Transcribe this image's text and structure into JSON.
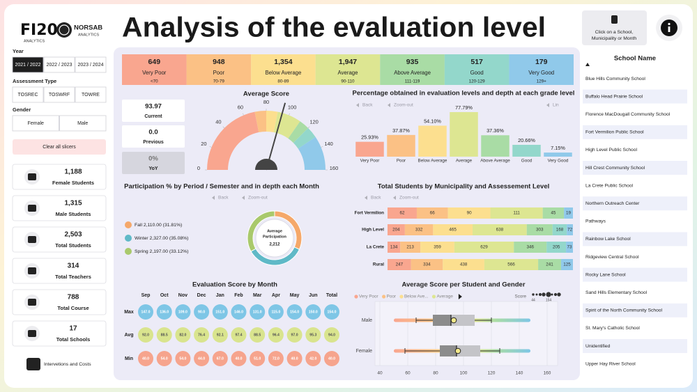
{
  "header": {
    "logo": "FI20",
    "logo_sub": "ANALYTICS",
    "partner": "NORSAB",
    "partner_sub": "ANALYTICS",
    "title": "Analysis of the evaluation level",
    "hint": [
      "Click on a School,",
      "Municipality or Month"
    ]
  },
  "filters": {
    "year": {
      "label": "Year",
      "options": [
        "2021 / 2022",
        "2022 / 2023",
        "2023 / 2024"
      ],
      "selected": 0
    },
    "assessment": {
      "label": "Assessment Type",
      "options": [
        "TOSREC",
        "TOSWRF",
        "TOWRE"
      ]
    },
    "gender": {
      "label": "Gender",
      "options": [
        "Female",
        "Male"
      ]
    },
    "clear": "Clear all slicers"
  },
  "stats": [
    {
      "value": "1,188",
      "label": "Female Students"
    },
    {
      "value": "1,315",
      "label": "Male Students"
    },
    {
      "value": "2,503",
      "label": "Total Students"
    },
    {
      "value": "314",
      "label": "Total Teachers"
    },
    {
      "value": "788",
      "label": "Total Course"
    },
    {
      "value": "17",
      "label": "Total Schools"
    }
  ],
  "nav": "Intervetions and Costs",
  "levels": [
    {
      "count": "649",
      "name": "Very Poor",
      "range": "<70",
      "color": "#f9a68f"
    },
    {
      "count": "948",
      "name": "Poor",
      "range": "70-79",
      "color": "#fbc185"
    },
    {
      "count": "1,354",
      "name": "Below Average",
      "range": "80-89",
      "color": "#fcdf8f"
    },
    {
      "count": "1,947",
      "name": "Average",
      "range": "90-110",
      "color": "#dde692"
    },
    {
      "count": "935",
      "name": "Above Average",
      "range": "111-119",
      "color": "#a9dca5"
    },
    {
      "count": "517",
      "name": "Good",
      "range": "120-129",
      "color": "#93d7cb"
    },
    {
      "count": "179",
      "name": "Very Good",
      "range": "129+",
      "color": "#90c9ea"
    }
  ],
  "score_cards": [
    {
      "value": "93.97",
      "label": "Current"
    },
    {
      "value": "0.0",
      "label": "Previous"
    },
    {
      "value": "0%",
      "label": "YoY"
    }
  ],
  "monthly_scores": {
    "title": "Evaluation Score by Month",
    "columns": [
      "Sep",
      "Oct",
      "Nov",
      "Dec",
      "Jan",
      "Feb",
      "Mar",
      "Apr",
      "May",
      "Jun",
      "Total"
    ],
    "rows": [
      {
        "label": "Max",
        "color": "#7ec6e6",
        "cells": [
          "147.0",
          "136.0",
          "109.0",
          "90.0",
          "151.0",
          "146.0",
          "131.0",
          "115.0",
          "154.0",
          "150.0",
          "154.0"
        ]
      },
      {
        "label": "Avg",
        "color": "#d9e48e",
        "cells": [
          "92.0",
          "88.5",
          "82.0",
          "76.4",
          "92.1",
          "97.4",
          "88.5",
          "96.4",
          "97.0",
          "95.3",
          "94.0"
        ]
      },
      {
        "label": "Min",
        "color": "#f6a48d",
        "cells": [
          "40.0",
          "54.0",
          "54.0",
          "44.0",
          "67.0",
          "40.0",
          "51.0",
          "72.0",
          "40.0",
          "42.0",
          "40.0"
        ]
      }
    ]
  },
  "schools": {
    "title": "School Name",
    "items": [
      "Blue Hills Community School",
      "Buffalo Head Prairie School",
      "Florence MacDougall Community School",
      "Fort Vermilion Public School",
      "High Level Public School",
      "Hill Crest Community School",
      "La Crete Public School",
      "Northern Outreach Center",
      "Pathways",
      "Rainbow Lake School",
      "Ridgeview Central School",
      "Rocky Lane School",
      "Sand Hills Elementary School",
      "Spirit of the North Community School",
      "St. Mary's Catholic School",
      "Unidentified",
      "Upper Hay River School"
    ]
  },
  "chart_data": [
    {
      "type": "gauge",
      "title": "Average Score",
      "value": 93.97,
      "ylim": [
        0,
        160
      ],
      "yticks": [
        0,
        20,
        40,
        60,
        80,
        100,
        120,
        140,
        160
      ],
      "band_edges": [
        0,
        70,
        80,
        90,
        111,
        120,
        130,
        160
      ],
      "colors": [
        "#f9a68f",
        "#fbc185",
        "#fcdf8f",
        "#dde692",
        "#a9dca5",
        "#93d7cb",
        "#90c9ea"
      ],
      "needle_color": "#444444"
    },
    {
      "type": "bar",
      "title": "Percentage obtained in evaluation levels and depth at each grade level",
      "controls": [
        "Back",
        "Zoom-out",
        "Lin"
      ],
      "categories": [
        "Very Poor",
        "Poor",
        "Below Average",
        "Average",
        "Above Average",
        "Good",
        "Very Good"
      ],
      "values": [
        25.93,
        37.87,
        54.1,
        77.79,
        37.36,
        20.66,
        7.15
      ],
      "value_labels": [
        "25.93%",
        "37.87%",
        "54.10%",
        "77.79%",
        "37.36%",
        "20.66%",
        "7.15%"
      ],
      "colors": [
        "#f9a68f",
        "#fbc185",
        "#fcdf8f",
        "#dde692",
        "#a9dca5",
        "#93d7cb",
        "#90c9ea"
      ]
    },
    {
      "type": "pie",
      "donut": true,
      "title": "Participation % by Period / Semester and in depth each Month",
      "controls": [
        "Back",
        "Zoom-out"
      ],
      "categories": [
        "Fall",
        "Winter",
        "Spring"
      ],
      "values": [
        2110,
        2327,
        2197
      ],
      "legend_labels": [
        "Fall 2,110.00 (31.81%)",
        "Winter 2,327.00 (35.08%)",
        "Spring 2,197.00 (33.12%)"
      ],
      "colors": [
        "#f5a86a",
        "#5fb9c7",
        "#a9c96c"
      ],
      "center_label": [
        "Average",
        "Participation"
      ],
      "center_value": "2,212"
    },
    {
      "type": "bar",
      "orientation": "horizontal",
      "stacked": true,
      "percent": true,
      "title": "Total Students by Municipality and Assessement Level",
      "controls": [
        "Back",
        "Zoom-out"
      ],
      "categories": [
        "Fort Vermilion",
        "High Level",
        "La Crete",
        "Rural"
      ],
      "series": [
        {
          "color": "#f9a68f",
          "values": [
            62,
            204,
            134,
            247
          ]
        },
        {
          "color": "#fbc185",
          "values": [
            66,
            332,
            213,
            334
          ]
        },
        {
          "color": "#fcdf8f",
          "values": [
            90,
            465,
            359,
            438
          ]
        },
        {
          "color": "#dde692",
          "values": [
            111,
            638,
            629,
            566
          ]
        },
        {
          "color": "#a9dca5",
          "values": [
            45,
            303,
            346,
            241
          ]
        },
        {
          "color": "#93d7cb",
          "values": [
            null,
            168,
            205,
            null
          ]
        },
        {
          "color": "#90c9ea",
          "values": [
            19,
            72,
            73,
            125
          ]
        }
      ]
    },
    {
      "type": "box",
      "title": "Average Score per Student and Gender",
      "categories": [
        "Male",
        "Female"
      ],
      "series": [
        {
          "min": 66,
          "q1": 78,
          "median": 91,
          "q3": 108,
          "max": 120,
          "mean": 93,
          "extent": [
            50,
            148
          ]
        },
        {
          "min": 58,
          "q1": 83,
          "median": 95,
          "q3": 112,
          "max": 126,
          "mean": 96,
          "extent": [
            50,
            148
          ]
        }
      ],
      "xlim": [
        40,
        160
      ],
      "xticks": [
        40,
        60,
        80,
        100,
        120,
        140,
        160
      ],
      "grid": true,
      "legend": [
        {
          "name": "Very Poor",
          "color": "#f9a68f"
        },
        {
          "name": "Poor",
          "color": "#fbc185"
        },
        {
          "name": "Below Ave...",
          "color": "#fcdf8f"
        },
        {
          "name": "Average",
          "color": "#dde692"
        }
      ],
      "size_legend": {
        "label": "Score",
        "values": [
          44,
          154
        ]
      }
    }
  ]
}
